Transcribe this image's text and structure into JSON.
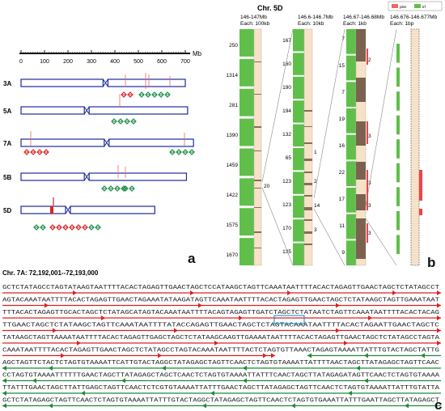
{
  "panel_a": {
    "axis": {
      "ticks": [
        "0",
        "100",
        "200",
        "300",
        "400",
        "500",
        "600",
        "700"
      ],
      "unit": "Mb"
    },
    "chromosomes": [
      {
        "label": "3A",
        "length": 700,
        "centromere": 360
      },
      {
        "label": "5A",
        "length": 710,
        "centromere": 280
      },
      {
        "label": "7A",
        "length": 735,
        "centromere": 365
      },
      {
        "label": "5B",
        "length": 705,
        "centromere": 280
      },
      {
        "label": "5D",
        "length": 570,
        "centromere": 200
      }
    ],
    "letter": "a"
  },
  "panel_b": {
    "title": "Chr. 5D",
    "columns": [
      {
        "range": "146-147Mb",
        "res": "Each: 100kb"
      },
      {
        "range": "146.6-146.7Mb",
        "res": "Each: 10kb"
      },
      {
        "range": "146.67-146.68Mb",
        "res": "Each: 1kb"
      },
      {
        "range": "146.676-146.677Mb",
        "res": "Each: 1bp"
      }
    ],
    "legend": [
      "piler",
      "trf"
    ],
    "col1_labels": [
      "250",
      "1314",
      "281",
      "1390",
      "1459",
      "1422",
      "1575",
      "1670"
    ],
    "col1_mid": [
      "20"
    ],
    "col2_left": [
      "167",
      "160",
      "190",
      "194",
      "132",
      "65",
      "123",
      "123",
      "170",
      "135"
    ],
    "col2_right": [
      "1",
      "2",
      "14",
      "3"
    ],
    "col3_left": [
      "7",
      "15",
      "7",
      "19",
      "16",
      "22",
      "17",
      "11",
      "9"
    ],
    "col3_right": [
      "2",
      "3",
      "3",
      "3",
      "3"
    ],
    "letter": "b"
  },
  "panel_c": {
    "title": "Chr. 7A: 72,192,001--72,193,000",
    "lines": [
      "GCTCTATAGCCTAGTATAAGTAATTTTACACTAGAGTTGAACTAGCTCCATAAGCTAGTTCAAATAATTTTACACTAGAGTTGAACTAGCTCTATAGCCT",
      "AGTACAAATAATTTTACACTAGAGTTGAACTAGAAATATAAGATAGTTCAAATAATTTTACACTAGAGTTGAACTAGCTCTATAAGCTAGTTGAAATAAT",
      "TTTACACTAGAGTTGCACTAGCTCTATAGCATAGTACAAATAATTTTACAGTAGAGTTGATCTAGCTCTATAATCTAGTTCAAATAATTTTACACTACAG",
      "TTGAACTAGCTCTATAAGCTAGTTCAAATAATTTTATACCAGAGTTGAACTAGCTCTAGTACAAATAATTTTACACTAGAATTGAACTAGCTC",
      "TATAAGCTAGTTAAAATAATTTTACACTAGAGTTGAGCTAGCTCTATAAGCAAGTTGAAAATAATTTTACACTAGAGTTGAACTAGCTCTATAGCCTAGTA",
      "CAAATAATTTTACACTAGAGTTGAACTAGCTCTATAGCCTAGTACAAATAATTTTACTCTAGTGTTAAACTAGAGTAAAATTATTTGTACTAGCTATTG",
      "AGCTAGTTCTACTCTAGTGTAAAATTCATTGTACTAGGCTATAGAGCTAGTTCAACTCTAGTGTAAAATTATTTTAACTAGCTTATAGAGCTAGTTCAAC",
      "CCTAGTGTAAAATTTTTTGAACTAGCTTATAGAGCTAGCTCAACTCTAGTGTAAAATTATTTCAACTAGCTTATAGAGATAGTTCAACTCTAGTGTAAAA",
      "TTATTTGAACTAGCTTATTGAGCTAGTTCAACTCTCGTGTAAAATTATTTGAACTAGCTTATAGAGCTAGTTCAACTCTAGTGTAAAATTATTTGTATTA",
      "GCTCTATAGAGCTAGTTCAACTCTAGTGTAAAATTATTTGTACTAGGCTATAGAGCTAGTTCAACTCTAGTGTGAAATTATTTGAATTAGCTTATAGAGCT"
    ],
    "letter": "c"
  },
  "colors": {
    "chromosome": "#1b2b9c",
    "green": "#5fbf4a",
    "tan": "#f3dcc0",
    "brown": "#7b6250",
    "red": "#e02020",
    "teal": "#1f7a4a"
  }
}
